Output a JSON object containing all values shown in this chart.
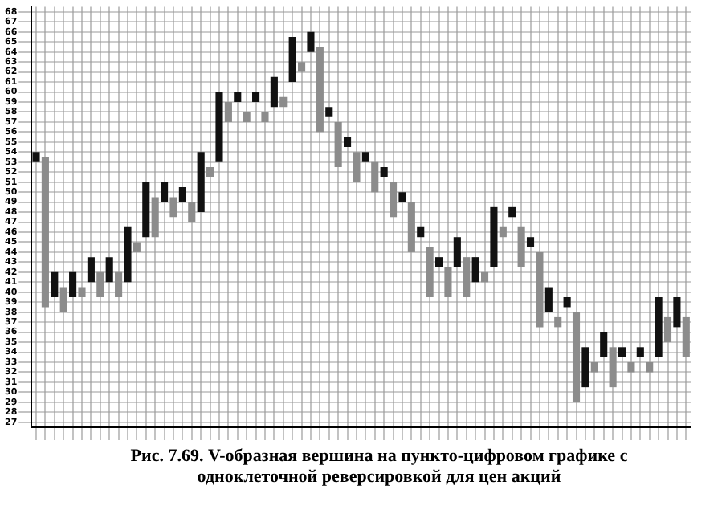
{
  "chart_data": {
    "type": "bar",
    "annotations": [
      "Рис. 7.69. V-образная вершина на пункто-цифровом графике с одноклеточной реверсировкой для цен акций"
    ],
    "categories": [
      null,
      null,
      null,
      null,
      null,
      null,
      null,
      null,
      null,
      null,
      null,
      null,
      null,
      null,
      null,
      null,
      null,
      null,
      null,
      null,
      null,
      null,
      null,
      null,
      null,
      null,
      null,
      null,
      null,
      null,
      null,
      null,
      null,
      null,
      null,
      null,
      null,
      null,
      null,
      null,
      null,
      null,
      null,
      null,
      null,
      null,
      null,
      null,
      null,
      null,
      null,
      null,
      null,
      null,
      null,
      null,
      null,
      null,
      null,
      null,
      null,
      null,
      null,
      null,
      null,
      null,
      null,
      null,
      null,
      null,
      null,
      null
    ],
    "base": [
      53,
      38.5,
      39.5,
      38,
      39.5,
      39.5,
      41,
      39.5,
      41,
      39.5,
      41,
      44,
      45.5,
      45.5,
      49,
      47.5,
      49,
      47,
      48,
      51.5,
      53,
      57,
      59,
      57,
      59,
      57,
      58.5,
      58.5,
      61,
      62,
      64,
      56,
      57.5,
      52.5,
      54.5,
      51,
      53,
      50,
      51.5,
      47.5,
      49,
      44,
      45.5,
      39.5,
      42.5,
      39.5,
      42.5,
      39.5,
      41,
      41,
      42.5,
      45.5,
      47.5,
      42.5,
      44.5,
      36.5,
      38,
      36.5,
      38.5,
      29,
      30.5,
      32,
      33.5,
      30.5,
      33.5,
      32,
      33.5,
      32,
      33.5,
      35,
      36.5,
      33.5
    ],
    "values": [
      1,
      15,
      2.5,
      2.5,
      2.5,
      1,
      2.5,
      2.5,
      2.5,
      2.5,
      5.5,
      1,
      5.5,
      4,
      2,
      2,
      1.5,
      2,
      6,
      1,
      7,
      2,
      1,
      1,
      1,
      1,
      3,
      1,
      4.5,
      1,
      2,
      8.5,
      1,
      4.5,
      1,
      3,
      1,
      3,
      1,
      3.5,
      1,
      5,
      1,
      5,
      1,
      3,
      3,
      4,
      2.5,
      1,
      6,
      1,
      1,
      4,
      1,
      7.5,
      2.5,
      1,
      1,
      9,
      4,
      1,
      2.5,
      4,
      1,
      1,
      1,
      1,
      6,
      2.5,
      3,
      4
    ],
    "colors": [
      "#111111",
      "#8c8c8c",
      "#111111",
      "#8c8c8c",
      "#111111",
      "#8c8c8c",
      "#111111",
      "#8c8c8c",
      "#111111",
      "#8c8c8c",
      "#111111",
      "#8c8c8c",
      "#111111",
      "#8c8c8c",
      "#111111",
      "#8c8c8c",
      "#111111",
      "#8c8c8c",
      "#111111",
      "#8c8c8c",
      "#111111",
      "#8c8c8c",
      "#111111",
      "#8c8c8c",
      "#111111",
      "#8c8c8c",
      "#111111",
      "#8c8c8c",
      "#111111",
      "#8c8c8c",
      "#111111",
      "#8c8c8c",
      "#111111",
      "#8c8c8c",
      "#111111",
      "#8c8c8c",
      "#111111",
      "#8c8c8c",
      "#111111",
      "#8c8c8c",
      "#111111",
      "#8c8c8c",
      "#111111",
      "#8c8c8c",
      "#111111",
      "#8c8c8c",
      "#111111",
      "#8c8c8c",
      "#111111",
      "#8c8c8c",
      "#111111",
      "#8c8c8c",
      "#111111",
      "#8c8c8c",
      "#111111",
      "#8c8c8c",
      "#111111",
      "#8c8c8c",
      "#111111",
      "#8c8c8c",
      "#111111",
      "#8c8c8c",
      "#111111",
      "#8c8c8c",
      "#111111",
      "#8c8c8c",
      "#111111",
      "#8c8c8c",
      "#111111",
      "#8c8c8c",
      "#111111",
      "#8c8c8c"
    ],
    "ylim": [
      26.5,
      68.5
    ],
    "yticks": [
      27,
      28,
      29,
      30,
      31,
      32,
      33,
      34,
      35,
      36,
      37,
      38,
      39,
      40,
      41,
      42,
      43,
      44,
      45,
      46,
      47,
      48,
      49,
      50,
      51,
      52,
      53,
      54,
      55,
      56,
      57,
      58,
      59,
      60,
      61,
      62,
      63,
      64,
      65,
      66,
      67,
      68
    ],
    "grid": true,
    "legend": false
  }
}
